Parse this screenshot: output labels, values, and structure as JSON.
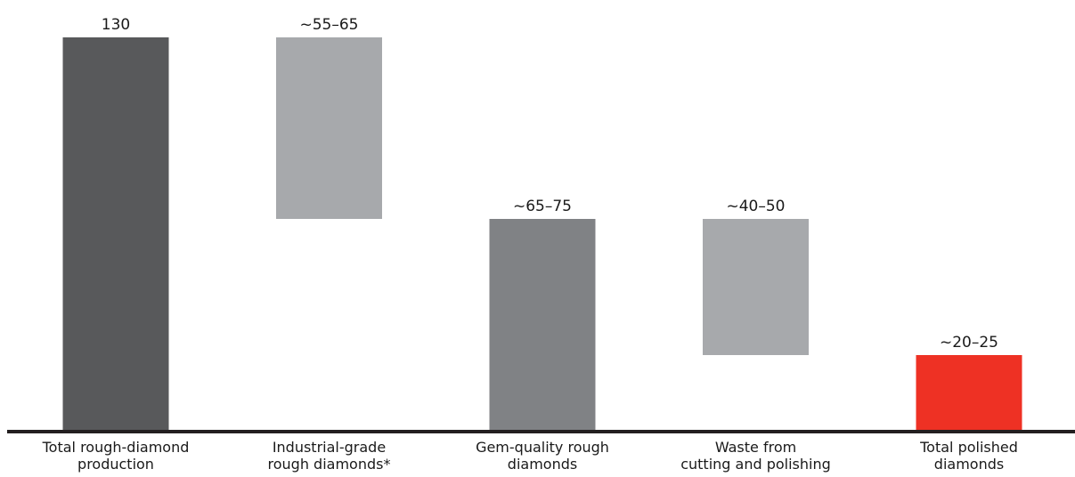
{
  "chart_data": {
    "type": "bar",
    "variant": "waterfall",
    "categories": [
      [
        "Total rough-diamond",
        "production"
      ],
      [
        "Industrial-grade",
        "rough diamonds*"
      ],
      [
        "Gem-quality rough",
        "diamonds"
      ],
      [
        "Waste from",
        "cutting and polishing"
      ],
      [
        "Total polished",
        "diamonds"
      ]
    ],
    "bars": [
      {
        "label": "130",
        "low": 0,
        "high": 130,
        "color": "#58595b"
      },
      {
        "label": "~55–65",
        "low": 70,
        "high": 130,
        "color": "#a7a9ac"
      },
      {
        "label": "~65–75",
        "low": 0,
        "high": 70,
        "color": "#808285"
      },
      {
        "label": "~40–50",
        "low": 25,
        "high": 70,
        "color": "#a7a9ac"
      },
      {
        "label": "~20–25",
        "low": 0,
        "high": 25,
        "color": "#ee3124"
      }
    ],
    "ylim": [
      0,
      130
    ],
    "grid": false,
    "axis_color": "#231f20"
  }
}
